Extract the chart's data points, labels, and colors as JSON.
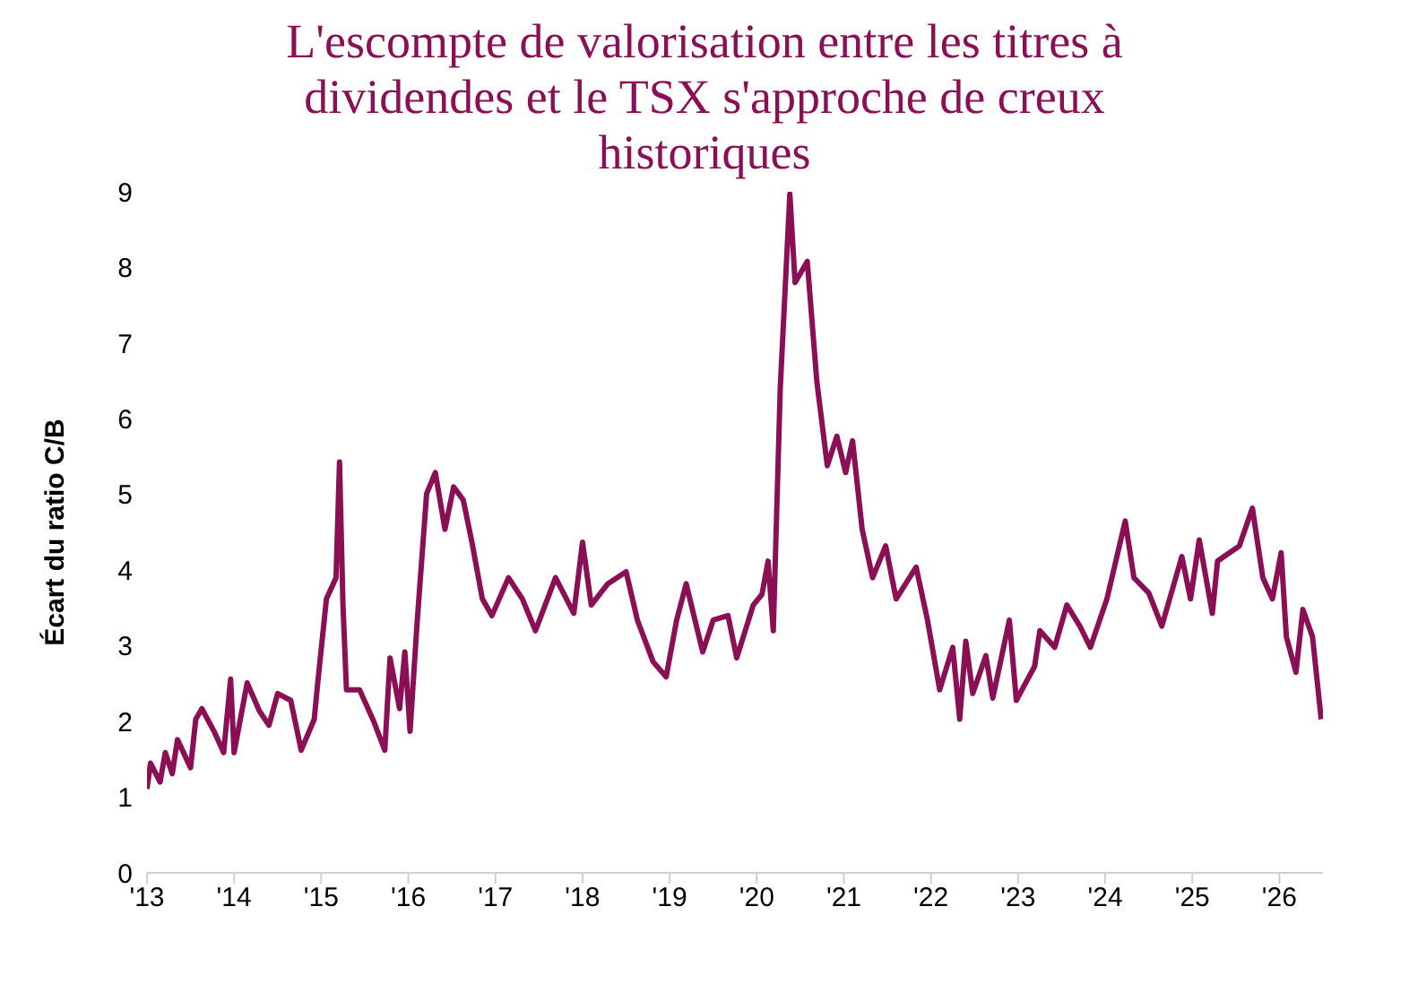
{
  "chart_data": {
    "type": "line",
    "title": "L'escompte de valorisation entre les titres à dividendes et le TSX s'approche de creux historiques",
    "ylabel": "Écart du ratio C/B",
    "x": [
      2013.0,
      2013.04,
      2013.15,
      2013.21,
      2013.29,
      2013.35,
      2013.5,
      2013.56,
      2013.63,
      2013.77,
      2013.88,
      2013.96,
      2014.0,
      2014.15,
      2014.29,
      2014.4,
      2014.5,
      2014.65,
      2014.77,
      2014.92,
      2014.96,
      2015.06,
      2015.17,
      2015.21,
      2015.25,
      2015.29,
      2015.44,
      2015.6,
      2015.73,
      2015.79,
      2015.9,
      2015.96,
      2016.02,
      2016.1,
      2016.21,
      2016.31,
      2016.42,
      2016.52,
      2016.63,
      2016.73,
      2016.85,
      2016.96,
      2017.15,
      2017.31,
      2017.46,
      2017.69,
      2017.9,
      2018.0,
      2018.1,
      2018.29,
      2018.5,
      2018.63,
      2018.81,
      2018.96,
      2019.08,
      2019.19,
      2019.38,
      2019.5,
      2019.67,
      2019.77,
      2019.96,
      2020.06,
      2020.13,
      2020.19,
      2020.27,
      2020.38,
      2020.44,
      2020.58,
      2020.69,
      2020.81,
      2020.92,
      2021.02,
      2021.1,
      2021.21,
      2021.33,
      2021.48,
      2021.6,
      2021.83,
      2021.96,
      2022.1,
      2022.25,
      2022.33,
      2022.4,
      2022.48,
      2022.63,
      2022.71,
      2022.9,
      2022.98,
      2023.19,
      2023.25,
      2023.42,
      2023.56,
      2023.71,
      2023.83,
      2024.02,
      2024.23,
      2024.33,
      2024.5,
      2024.65,
      2024.88,
      2024.98,
      2025.08,
      2025.23,
      2025.29,
      2025.54,
      2025.69,
      2025.81,
      2025.92,
      2026.02,
      2026.08,
      2026.19,
      2026.27,
      2026.38,
      2026.48
    ],
    "series": [
      {
        "color": "#8a0f55",
        "values": [
          1.11,
          1.45,
          1.2,
          1.59,
          1.31,
          1.76,
          1.39,
          2.03,
          2.17,
          1.87,
          1.59,
          2.56,
          1.59,
          2.51,
          2.14,
          1.95,
          2.37,
          2.28,
          1.62,
          2.03,
          2.51,
          3.62,
          3.9,
          5.43,
          3.54,
          2.42,
          2.42,
          2.01,
          1.62,
          2.84,
          2.17,
          2.92,
          1.87,
          3.29,
          5.01,
          5.29,
          4.54,
          5.1,
          4.93,
          4.37,
          3.62,
          3.4,
          3.9,
          3.62,
          3.2,
          3.9,
          3.43,
          4.37,
          3.54,
          3.82,
          3.98,
          3.34,
          2.79,
          2.59,
          3.34,
          3.82,
          2.92,
          3.34,
          3.4,
          2.84,
          3.54,
          3.68,
          4.12,
          3.2,
          6.41,
          8.97,
          7.8,
          8.08,
          6.49,
          5.38,
          5.77,
          5.29,
          5.71,
          4.54,
          3.9,
          4.32,
          3.62,
          4.04,
          3.34,
          2.42,
          2.98,
          2.03,
          3.06,
          2.37,
          2.87,
          2.31,
          3.34,
          2.28,
          2.73,
          3.2,
          2.98,
          3.54,
          3.26,
          2.98,
          3.62,
          4.65,
          3.9,
          3.7,
          3.26,
          4.18,
          3.62,
          4.4,
          3.43,
          4.12,
          4.32,
          4.82,
          3.9,
          3.62,
          4.23,
          3.12,
          2.65,
          3.48,
          3.12,
          2.03
        ]
      }
    ],
    "xlim": [
      2013,
      2026.5
    ],
    "xticks": [
      {
        "value": 2013,
        "label": "'13"
      },
      {
        "value": 2014,
        "label": "'14"
      },
      {
        "value": 2015,
        "label": "'15"
      },
      {
        "value": 2016,
        "label": "'16"
      },
      {
        "value": 2017,
        "label": "'17"
      },
      {
        "value": 2018,
        "label": "'18"
      },
      {
        "value": 2019,
        "label": "'19"
      },
      {
        "value": 2020,
        "label": "'20"
      },
      {
        "value": 2021,
        "label": "'21"
      },
      {
        "value": 2022,
        "label": "'22"
      },
      {
        "value": 2023,
        "label": "'23"
      },
      {
        "value": 2024,
        "label": "'24"
      },
      {
        "value": 2025,
        "label": "'25"
      },
      {
        "value": 2026,
        "label": "'26"
      }
    ],
    "ylim": [
      0,
      9
    ],
    "yticks": [
      0,
      1,
      2,
      3,
      4,
      5,
      6,
      7,
      8,
      9
    ],
    "grid": false,
    "legend": false,
    "marker": "none",
    "line_style": "solid"
  }
}
